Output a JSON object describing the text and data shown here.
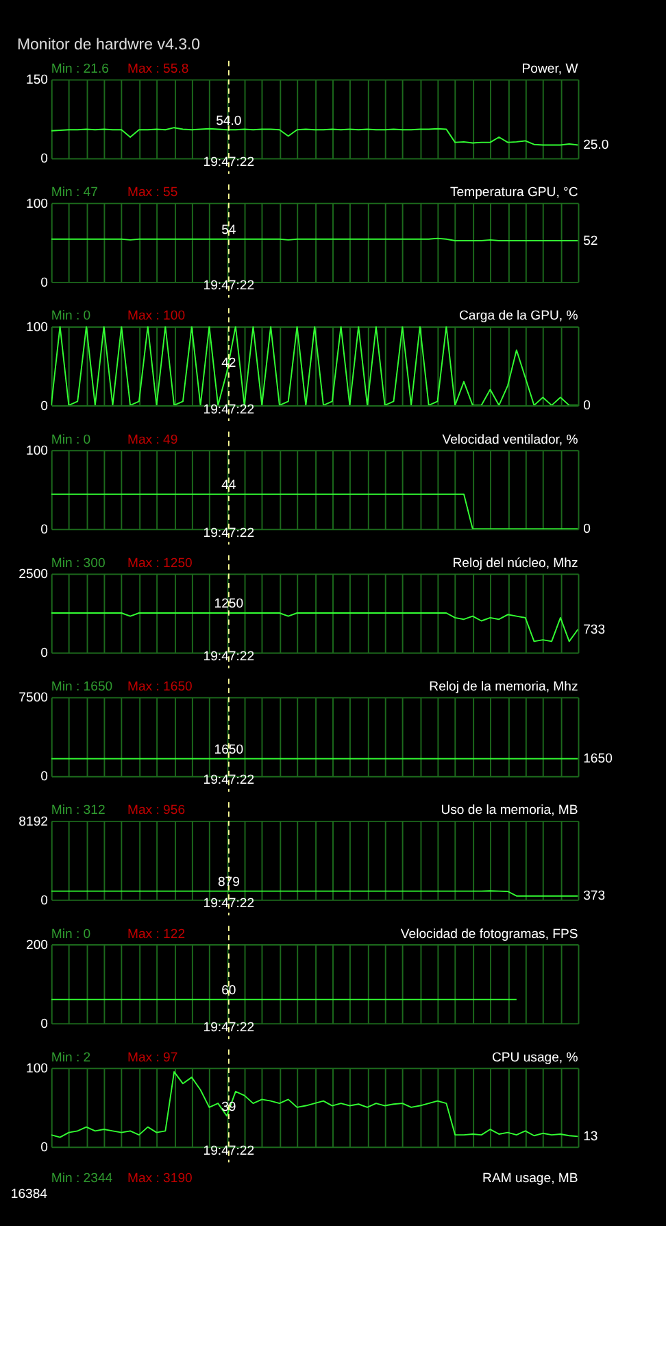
{
  "chart_data": [
    {
      "type": "other",
      "title": "Monitor de hardwre v4.3.0"
    },
    {
      "type": "line",
      "title": "Power, W",
      "categories": [
        null,
        null,
        null,
        null,
        null,
        null,
        null,
        null,
        null,
        null,
        null,
        null,
        null,
        null,
        null,
        null,
        null,
        null,
        null,
        null,
        null,
        null,
        null,
        null,
        null,
        null,
        null,
        null,
        null,
        null,
        null,
        null,
        null,
        null,
        null,
        null,
        null,
        null,
        null,
        null,
        null,
        null,
        null,
        null,
        null,
        null,
        null,
        null,
        null,
        null,
        null,
        null,
        null,
        null,
        null,
        null,
        null,
        null,
        null,
        null,
        null
      ],
      "series": [
        {
          "color": "#33ff33",
          "values": [
            52,
            53,
            54,
            54,
            55,
            54,
            55,
            54,
            54,
            40,
            54,
            54,
            55,
            54,
            58,
            55,
            54,
            55,
            56,
            55,
            54,
            54,
            55,
            54,
            55,
            55,
            54,
            42,
            54,
            55,
            54,
            54,
            55,
            54,
            55,
            54,
            55,
            54,
            54,
            55,
            54,
            54,
            55,
            55,
            56,
            55,
            30,
            31,
            29,
            30,
            30,
            40,
            30,
            31,
            33,
            26,
            25,
            25,
            25,
            27,
            25
          ]
        }
      ],
      "ylim": [
        0,
        150
      ],
      "yticks": [
        150,
        0
      ],
      "grid": true,
      "annotations": [
        "Min : 21.6",
        "Max : 55.8",
        "19:47:22",
        "54.0",
        "25.0"
      ]
    },
    {
      "type": "line",
      "title": "Temperatura GPU, °C",
      "categories": [
        null,
        null,
        null,
        null,
        null,
        null,
        null,
        null,
        null,
        null,
        null,
        null,
        null,
        null,
        null,
        null,
        null,
        null,
        null,
        null,
        null,
        null,
        null,
        null,
        null,
        null,
        null,
        null,
        null,
        null,
        null,
        null,
        null,
        null,
        null,
        null,
        null,
        null,
        null,
        null,
        null,
        null,
        null,
        null,
        null,
        null,
        null,
        null,
        null,
        null,
        null,
        null,
        null,
        null,
        null,
        null,
        null,
        null,
        null,
        null,
        null
      ],
      "series": [
        {
          "color": "#33ff33",
          "values": [
            54,
            54,
            54,
            54,
            54,
            54,
            54,
            54,
            54,
            53,
            54,
            54,
            54,
            54,
            54,
            54,
            54,
            54,
            54,
            54,
            54,
            54,
            54,
            54,
            54,
            54,
            54,
            53,
            54,
            54,
            54,
            54,
            54,
            54,
            54,
            54,
            54,
            54,
            54,
            54,
            54,
            54,
            54,
            54,
            55,
            54,
            52,
            52,
            52,
            52,
            53,
            52,
            52,
            52,
            52,
            52,
            52,
            52,
            52,
            52,
            52
          ]
        }
      ],
      "ylim": [
        0,
        100
      ],
      "yticks": [
        100,
        0
      ],
      "grid": true,
      "annotations": [
        "Min : 47",
        "Max : 55",
        "19:47:22",
        "54",
        "52"
      ]
    },
    {
      "type": "line",
      "title": "Carga de la GPU, %",
      "categories": [
        null,
        null,
        null,
        null,
        null,
        null,
        null,
        null,
        null,
        null,
        null,
        null,
        null,
        null,
        null,
        null,
        null,
        null,
        null,
        null,
        null,
        null,
        null,
        null,
        null,
        null,
        null,
        null,
        null,
        null,
        null,
        null,
        null,
        null,
        null,
        null,
        null,
        null,
        null,
        null,
        null,
        null,
        null,
        null,
        null,
        null,
        null,
        null,
        null,
        null,
        null,
        null,
        null,
        null,
        null,
        null,
        null,
        null,
        null,
        null,
        null
      ],
      "series": [
        {
          "color": "#33ff33",
          "values": [
            0,
            100,
            0,
            5,
            100,
            0,
            100,
            0,
            100,
            0,
            5,
            100,
            0,
            100,
            0,
            5,
            100,
            0,
            100,
            0,
            42,
            100,
            0,
            100,
            0,
            100,
            0,
            5,
            100,
            0,
            100,
            0,
            5,
            100,
            0,
            100,
            0,
            100,
            0,
            5,
            100,
            0,
            100,
            0,
            5,
            100,
            0,
            30,
            0,
            0,
            20,
            0,
            25,
            70,
            35,
            0,
            10,
            0,
            10,
            0,
            0
          ]
        }
      ],
      "ylim": [
        0,
        100
      ],
      "yticks": [
        100,
        0
      ],
      "grid": true,
      "annotations": [
        "Min : 0",
        "Max : 100",
        "19:47:22",
        "42",
        "0"
      ]
    },
    {
      "type": "line",
      "title": "Velocidad ventilador, %",
      "categories": [
        null,
        null,
        null,
        null,
        null,
        null,
        null,
        null,
        null,
        null,
        null,
        null,
        null,
        null,
        null,
        null,
        null,
        null,
        null,
        null,
        null,
        null,
        null,
        null,
        null,
        null,
        null,
        null,
        null,
        null,
        null,
        null,
        null,
        null,
        null,
        null,
        null,
        null,
        null,
        null,
        null,
        null,
        null,
        null,
        null,
        null,
        null,
        null,
        null,
        null,
        null,
        null,
        null,
        null,
        null,
        null,
        null,
        null,
        null,
        null,
        null
      ],
      "series": [
        {
          "color": "#33ff33",
          "values": [
            44,
            44,
            44,
            44,
            44,
            44,
            44,
            44,
            44,
            44,
            44,
            44,
            44,
            44,
            44,
            44,
            44,
            44,
            44,
            44,
            44,
            44,
            44,
            44,
            44,
            44,
            44,
            44,
            44,
            44,
            44,
            44,
            44,
            44,
            44,
            44,
            44,
            44,
            44,
            44,
            44,
            44,
            44,
            44,
            44,
            44,
            44,
            44,
            0,
            0,
            0,
            0,
            0,
            0,
            0,
            0,
            0,
            0,
            0,
            0,
            0
          ]
        }
      ],
      "ylim": [
        0,
        100
      ],
      "yticks": [
        100,
        0
      ],
      "grid": true,
      "annotations": [
        "Min : 0",
        "Max : 49",
        "19:47:22",
        "44",
        "0"
      ]
    },
    {
      "type": "line",
      "title": "Reloj del núcleo, Mhz",
      "categories": [
        null,
        null,
        null,
        null,
        null,
        null,
        null,
        null,
        null,
        null,
        null,
        null,
        null,
        null,
        null,
        null,
        null,
        null,
        null,
        null,
        null,
        null,
        null,
        null,
        null,
        null,
        null,
        null,
        null,
        null,
        null,
        null,
        null,
        null,
        null,
        null,
        null,
        null,
        null,
        null,
        null,
        null,
        null,
        null,
        null,
        null,
        null,
        null,
        null,
        null,
        null,
        null,
        null,
        null,
        null,
        null,
        null,
        null,
        null,
        null,
        null
      ],
      "series": [
        {
          "color": "#33ff33",
          "values": [
            1250,
            1250,
            1250,
            1250,
            1250,
            1250,
            1250,
            1250,
            1250,
            1150,
            1250,
            1250,
            1250,
            1250,
            1250,
            1250,
            1250,
            1250,
            1250,
            1250,
            1250,
            1250,
            1250,
            1250,
            1250,
            1250,
            1250,
            1150,
            1250,
            1250,
            1250,
            1250,
            1250,
            1250,
            1250,
            1250,
            1250,
            1250,
            1250,
            1250,
            1250,
            1250,
            1250,
            1250,
            1250,
            1250,
            1100,
            1050,
            1150,
            1000,
            1100,
            1050,
            1200,
            1150,
            1100,
            350,
            400,
            350,
            1100,
            350,
            733
          ]
        }
      ],
      "ylim": [
        0,
        2500
      ],
      "yticks": [
        2500,
        0
      ],
      "grid": true,
      "annotations": [
        "Min : 300",
        "Max : 1250",
        "19:47:22",
        "1250",
        "733"
      ]
    },
    {
      "type": "line",
      "title": "Reloj de la memoria, Mhz",
      "categories": [
        null,
        null,
        null,
        null,
        null,
        null,
        null,
        null,
        null,
        null,
        null,
        null,
        null,
        null,
        null,
        null,
        null,
        null,
        null,
        null,
        null,
        null,
        null,
        null,
        null,
        null,
        null,
        null,
        null,
        null,
        null,
        null,
        null,
        null,
        null,
        null,
        null,
        null,
        null,
        null,
        null,
        null,
        null,
        null,
        null,
        null,
        null,
        null,
        null,
        null,
        null,
        null,
        null,
        null,
        null,
        null,
        null,
        null,
        null,
        null,
        null
      ],
      "series": [
        {
          "color": "#33ff33",
          "values": [
            1650,
            1650,
            1650,
            1650,
            1650,
            1650,
            1650,
            1650,
            1650,
            1650,
            1650,
            1650,
            1650,
            1650,
            1650,
            1650,
            1650,
            1650,
            1650,
            1650,
            1650,
            1650,
            1650,
            1650,
            1650,
            1650,
            1650,
            1650,
            1650,
            1650,
            1650,
            1650,
            1650,
            1650,
            1650,
            1650,
            1650,
            1650,
            1650,
            1650,
            1650,
            1650,
            1650,
            1650,
            1650,
            1650,
            1650,
            1650,
            1650,
            1650,
            1650,
            1650,
            1650,
            1650,
            1650,
            1650,
            1650,
            1650,
            1650,
            1650,
            1650
          ]
        }
      ],
      "ylim": [
        0,
        7500
      ],
      "yticks": [
        7500,
        0
      ],
      "grid": true,
      "annotations": [
        "Min : 1650",
        "Max : 1650",
        "19:47:22",
        "1650",
        "1650"
      ]
    },
    {
      "type": "line",
      "title": "Uso de la memoria, MB",
      "categories": [
        null,
        null,
        null,
        null,
        null,
        null,
        null,
        null,
        null,
        null,
        null,
        null,
        null,
        null,
        null,
        null,
        null,
        null,
        null,
        null,
        null,
        null,
        null,
        null,
        null,
        null,
        null,
        null,
        null,
        null,
        null,
        null,
        null,
        null,
        null,
        null,
        null,
        null,
        null,
        null,
        null,
        null,
        null,
        null,
        null,
        null,
        null,
        null,
        null,
        null,
        null,
        null,
        null,
        null,
        null,
        null,
        null,
        null,
        null,
        null,
        null
      ],
      "series": [
        {
          "color": "#33ff33",
          "values": [
            879,
            879,
            879,
            879,
            879,
            879,
            879,
            879,
            879,
            879,
            879,
            879,
            879,
            879,
            879,
            879,
            879,
            879,
            879,
            879,
            879,
            879,
            879,
            879,
            879,
            879,
            879,
            879,
            879,
            879,
            879,
            879,
            879,
            879,
            879,
            879,
            879,
            879,
            879,
            879,
            879,
            879,
            879,
            879,
            879,
            879,
            879,
            879,
            879,
            879,
            900,
            879,
            850,
            373,
            373,
            373,
            373,
            373,
            373,
            373,
            373
          ]
        }
      ],
      "ylim": [
        0,
        8192
      ],
      "yticks": [
        8192,
        0
      ],
      "grid": true,
      "annotations": [
        "Min : 312",
        "Max : 956",
        "19:47:22",
        "879",
        "373"
      ]
    },
    {
      "type": "line",
      "title": "Velocidad de fotogramas, FPS",
      "categories": [
        null,
        null,
        null,
        null,
        null,
        null,
        null,
        null,
        null,
        null,
        null,
        null,
        null,
        null,
        null,
        null,
        null,
        null,
        null,
        null,
        null,
        null,
        null,
        null,
        null,
        null,
        null,
        null,
        null,
        null,
        null,
        null,
        null,
        null,
        null,
        null,
        null,
        null,
        null,
        null,
        null,
        null,
        null,
        null,
        null,
        null,
        null,
        null,
        null,
        null,
        null,
        null,
        null,
        null,
        null,
        null,
        null,
        null,
        null,
        null,
        null
      ],
      "series": [
        {
          "color": "#33ff33",
          "values": [
            60,
            60,
            60,
            60,
            60,
            60,
            60,
            60,
            60,
            60,
            60,
            60,
            60,
            60,
            60,
            60,
            60,
            60,
            60,
            60,
            60,
            60,
            60,
            60,
            60,
            60,
            60,
            60,
            60,
            60,
            60,
            60,
            60,
            60,
            60,
            60,
            60,
            60,
            60,
            60,
            60,
            60,
            60,
            60,
            60,
            60,
            60,
            60,
            60,
            60,
            60,
            60,
            60,
            60,
            null,
            null,
            null,
            null,
            null,
            null,
            null
          ]
        }
      ],
      "ylim": [
        0,
        200
      ],
      "yticks": [
        200,
        0
      ],
      "grid": true,
      "annotations": [
        "Min : 0",
        "Max : 122",
        "19:47:22",
        "60"
      ]
    },
    {
      "type": "line",
      "title": "CPU usage, %",
      "categories": [
        null,
        null,
        null,
        null,
        null,
        null,
        null,
        null,
        null,
        null,
        null,
        null,
        null,
        null,
        null,
        null,
        null,
        null,
        null,
        null,
        null,
        null,
        null,
        null,
        null,
        null,
        null,
        null,
        null,
        null,
        null,
        null,
        null,
        null,
        null,
        null,
        null,
        null,
        null,
        null,
        null,
        null,
        null,
        null,
        null,
        null,
        null,
        null,
        null,
        null,
        null,
        null,
        null,
        null,
        null,
        null,
        null,
        null,
        null,
        null,
        null
      ],
      "series": [
        {
          "color": "#33ff33",
          "values": [
            15,
            12,
            18,
            20,
            25,
            20,
            22,
            20,
            18,
            20,
            15,
            25,
            18,
            20,
            95,
            80,
            88,
            72,
            50,
            55,
            39,
            70,
            65,
            55,
            60,
            58,
            55,
            60,
            50,
            52,
            55,
            58,
            52,
            55,
            52,
            54,
            50,
            55,
            52,
            54,
            55,
            50,
            52,
            55,
            58,
            55,
            15,
            15,
            16,
            15,
            22,
            16,
            18,
            15,
            20,
            14,
            17,
            15,
            16,
            14,
            13
          ]
        }
      ],
      "ylim": [
        0,
        100
      ],
      "yticks": [
        100,
        0
      ],
      "grid": true,
      "annotations": [
        "Min : 2",
        "Max : 97",
        "19:47:22",
        "39",
        "13"
      ]
    },
    {
      "type": "other",
      "title": "RAM usage, MB",
      "annotations": [
        "Min : 2344",
        "Max : 3190",
        "16384"
      ]
    }
  ]
}
